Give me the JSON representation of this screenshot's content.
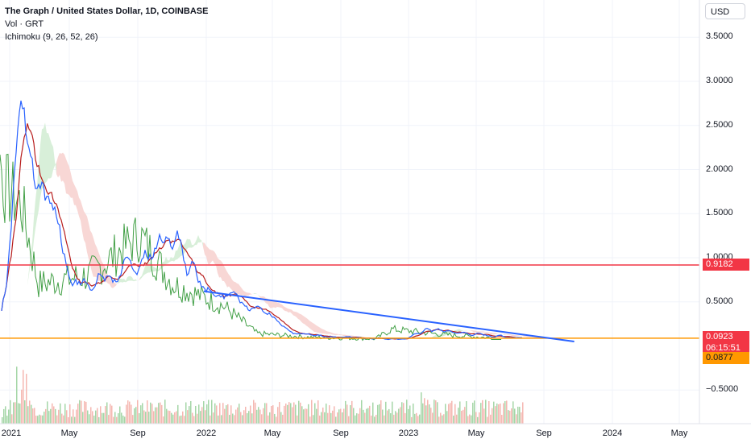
{
  "legend": {
    "title": "The Graph / United States Dollar, 1D, COINBASE",
    "volume": "Vol · GRT",
    "ichimoku": "Ichimoku (9, 26, 52, 26)"
  },
  "currency": "USD",
  "colors": {
    "red_line": "#f23645",
    "orange_line": "#ff9800",
    "trend_line": "#2962ff",
    "price_tag": "#f23645",
    "support_tag": "#ff9800",
    "conversion": "#2962ff",
    "base": "#b71c1c",
    "lagging": "#43a047",
    "cloud_bear": "#f8d7d5",
    "cloud_bull": "#d8efd9"
  },
  "y_ticks": [
    "3.5000",
    "3.0000",
    "2.5000",
    "2.0000",
    "1.5000",
    "1.0000",
    "0.5000",
    "−0.5000"
  ],
  "x_ticks": [
    "2021",
    "May",
    "Sep",
    "2022",
    "May",
    "Sep",
    "2023",
    "May",
    "Sep",
    "2024",
    "May"
  ],
  "levels": {
    "resistance": "0.9182",
    "price": "0.0923",
    "countdown": "06:15:51",
    "support": "0.0877"
  },
  "chart_data": {
    "type": "line",
    "y_axis_ticks": [
      3.5,
      3.0,
      2.5,
      2.0,
      1.5,
      1.0,
      0.5,
      -0.5
    ],
    "x_axis_ticks": [
      "2021",
      "May",
      "Sep",
      "2022",
      "May",
      "Sep",
      "2023",
      "May",
      "Sep",
      "2024",
      "May"
    ],
    "horizontal_lines": [
      {
        "value": 0.9182,
        "color": "#f23645"
      },
      {
        "value": 0.0877,
        "color": "#ff9800"
      }
    ],
    "last_price": 0.0923,
    "trend_line": {
      "from": [
        "2022-01",
        0.62
      ],
      "to": [
        "2023-11",
        0.05
      ]
    },
    "series_hint": [
      {
        "x": "2021-01",
        "y": 0.4
      },
      {
        "x": "2021-02",
        "y": 2.9
      },
      {
        "x": "2021-03",
        "y": 1.8
      },
      {
        "x": "2021-04",
        "y": 1.6
      },
      {
        "x": "2021-05",
        "y": 0.7
      },
      {
        "x": "2021-08",
        "y": 0.8
      },
      {
        "x": "2021-11",
        "y": 1.25
      },
      {
        "x": "2022-01",
        "y": 0.7
      },
      {
        "x": "2022-04",
        "y": 0.45
      },
      {
        "x": "2022-06",
        "y": 0.14
      },
      {
        "x": "2022-09",
        "y": 0.1
      },
      {
        "x": "2023-01",
        "y": 0.08
      },
      {
        "x": "2023-02",
        "y": 0.19
      },
      {
        "x": "2023-05",
        "y": 0.13
      },
      {
        "x": "2023-08",
        "y": 0.09
      }
    ]
  }
}
